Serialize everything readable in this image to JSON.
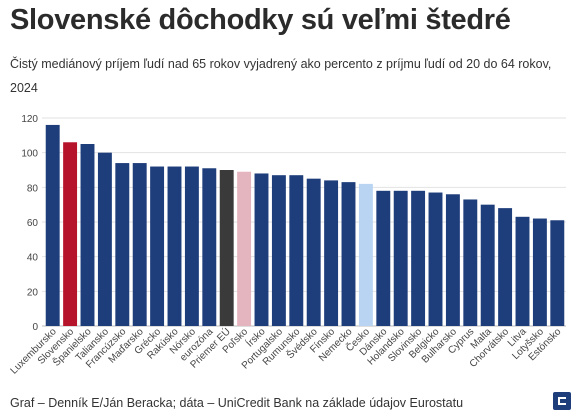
{
  "header": {
    "title": "Slovenské dôchodky sú veľmi štedré",
    "subtitle": "Čistý mediánový príjem ľudí nad 65 rokov vyjadrený ako percento z príjmu ľudí od 20 do 64 rokov, 2024"
  },
  "footer": {
    "credit": "Graf – Denník E/Ján Beracka; dáta – UniCredit Bank na základe údajov Eurostatu"
  },
  "colors": {
    "default": "#1e3d7b",
    "slovensko": "#b5142b",
    "eu_average": "#3a3a3a",
    "polsko": "#e4b4bf",
    "cesko": "#b8d4f2",
    "logo": "#1e3d7b"
  },
  "chart_data": {
    "type": "bar",
    "title": "",
    "xlabel": "",
    "ylabel": "",
    "ylim": [
      0,
      120
    ],
    "yticks": [
      0,
      20,
      40,
      60,
      80,
      100,
      120
    ],
    "grid": true,
    "categories": [
      "Luxembursko",
      "Slovensko",
      "Španielsko",
      "Taliansko",
      "Francúzsko",
      "Maďarsko",
      "Grécko",
      "Rakúsko",
      "Nórsko",
      "eurozóna",
      "Priemer EÚ",
      "Poľsko",
      "Írsko",
      "Portugalsko",
      "Rumunsko",
      "Švédsko",
      "Fínsko",
      "Nemecko",
      "Česko",
      "Dánsko",
      "Holandsko",
      "Slovinsko",
      "Belgicko",
      "Bulharsko",
      "Cyprus",
      "Malta",
      "Chorvátsko",
      "Litva",
      "Lotyšsko",
      "Estónsko"
    ],
    "values": [
      116,
      106,
      105,
      100,
      94,
      94,
      92,
      92,
      92,
      91,
      90,
      89,
      88,
      87,
      87,
      85,
      84,
      83,
      82,
      78,
      78,
      78,
      77,
      76,
      73,
      70,
      68,
      63,
      62,
      61
    ],
    "highlight": {
      "Slovensko": "slovensko",
      "Priemer EÚ": "eu_average",
      "Poľsko": "polsko",
      "Česko": "cesko"
    }
  }
}
